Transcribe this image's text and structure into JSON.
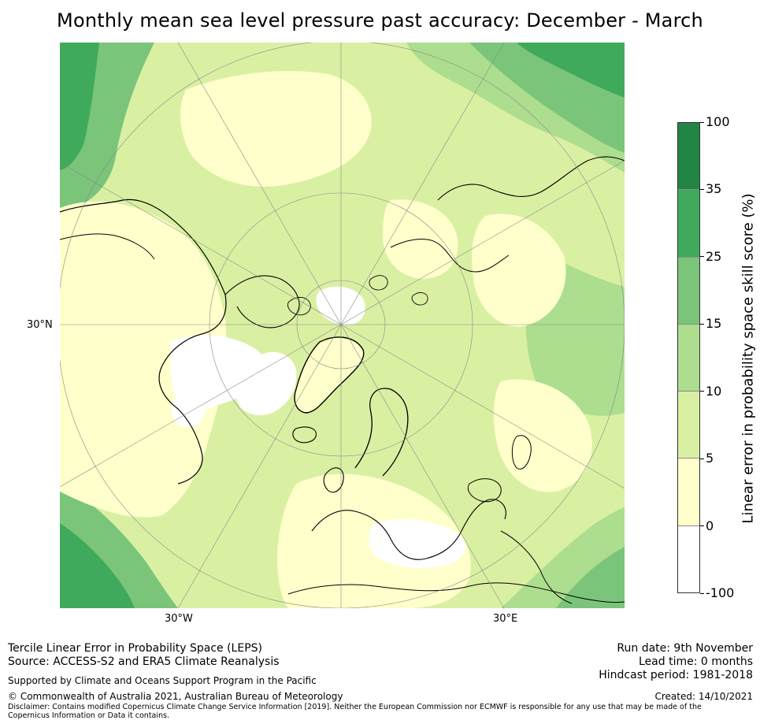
{
  "title": "Monthly mean sea level pressure past accuracy: December - March",
  "map": {
    "projection": "north polar stereographic",
    "lat_label": "30°N",
    "lon_labels": [
      "30°W",
      "30°E"
    ]
  },
  "legend": {
    "label": "Linear error in probability space skill score (%)",
    "ticks": [
      "100",
      "35",
      "25",
      "15",
      "10",
      "5",
      "0",
      "-100"
    ],
    "bins": [
      {
        "range": "35 to 100",
        "color": "#218545"
      },
      {
        "range": "25 to 35",
        "color": "#40aa5c"
      },
      {
        "range": "15 to 25",
        "color": "#7ac57a"
      },
      {
        "range": "10 to 15",
        "color": "#addd8e"
      },
      {
        "range": "5 to 10",
        "color": "#d9f0a3"
      },
      {
        "range": "0 to 5",
        "color": "#ffffcc"
      },
      {
        "range": "-100 to 0",
        "color": "#ffffff"
      }
    ]
  },
  "footer": {
    "left_line1": "Tercile Linear Error in Probability Space (LEPS)",
    "left_line2": "Source: ACCESS-S2 and ERA5 Climate Reanalysis",
    "supported": "Supported by Climate and Oceans Support Program in the Pacific",
    "copyright": "© Commonwealth of Australia 2021, Australian Bureau of Meteorology",
    "disclaimer": "Disclaimer: Contains modified Copernicus Climate Change Service Information [2019]. Neither the European Commission nor ECMWF is responsible for any use that may be made of the Copernicus Information or Data it contains.",
    "run_date": "Run date: 9th November",
    "lead_time": "Lead time: 0 months",
    "hindcast": "Hindcast period: 1981-2018",
    "created": "Created: 14/10/2021"
  }
}
